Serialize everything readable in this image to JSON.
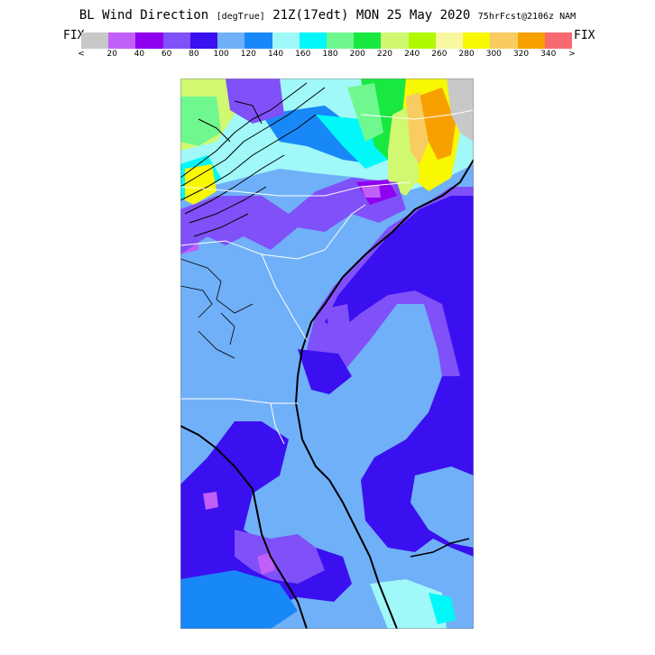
{
  "header": {
    "title_main": "BL Wind Direction",
    "unit": "[degTrue]",
    "valid": "21Z(17edt) MON 25 May 2020",
    "forecast": "75hrFcst@2106z NAM"
  },
  "legend": {
    "fix_left": "FIX",
    "fix_right": "FIX",
    "arrow_left": "<",
    "arrow_right": ">",
    "ticks": [
      "20",
      "40",
      "60",
      "80",
      "100",
      "120",
      "140",
      "160",
      "180",
      "200",
      "220",
      "240",
      "260",
      "280",
      "300",
      "320",
      "340"
    ],
    "colors": [
      "#c8c8c8",
      "#c060f8",
      "#9000f0",
      "#8050f8",
      "#3a10f0",
      "#70b0f8",
      "#1888f8",
      "#a0f8f8",
      "#00f8f8",
      "#70f890",
      "#18e840",
      "#d0f870",
      "#b0f800",
      "#f8f8a0",
      "#f8f800",
      "#f8cc60",
      "#f8a000",
      "#f86870"
    ]
  },
  "map": {
    "region": "US Southeast coast (NC, SC, GA, FL)",
    "dominant_direction_deg": "100-120",
    "color_scale_min": 0,
    "color_scale_max": 360,
    "color_scale_step": 20
  }
}
